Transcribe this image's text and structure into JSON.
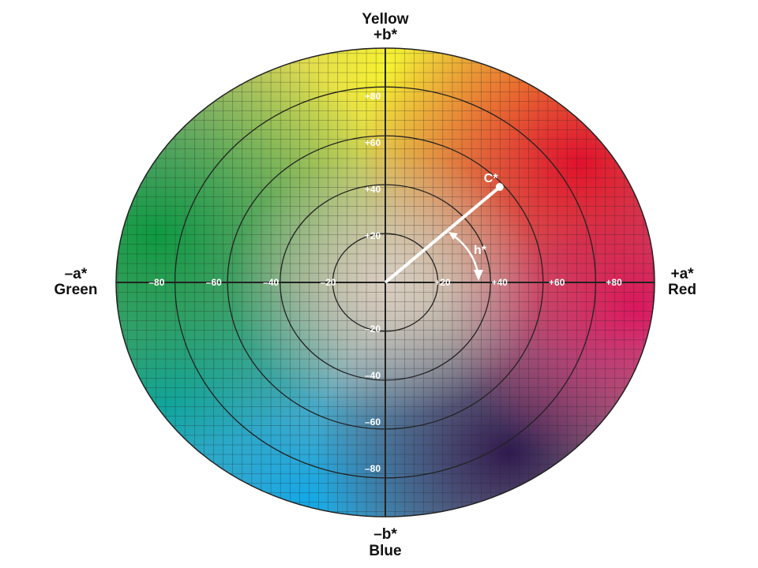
{
  "diagram": {
    "axes": {
      "top": {
        "line1": "Yellow",
        "line2": "+b*"
      },
      "bottom": {
        "line1": "–b*",
        "line2": "Blue"
      },
      "left": {
        "line1": "–a*",
        "line2": "Green"
      },
      "right": {
        "line1": "+a*",
        "line2": "Red"
      }
    },
    "a_ticks": [
      {
        "value": -80,
        "label": "–80"
      },
      {
        "value": -60,
        "label": "–60"
      },
      {
        "value": -40,
        "label": "–40"
      },
      {
        "value": -20,
        "label": "–20"
      },
      {
        "value": 20,
        "label": "+20"
      },
      {
        "value": 40,
        "label": "+40"
      },
      {
        "value": 60,
        "label": "+60"
      },
      {
        "value": 80,
        "label": "+80"
      }
    ],
    "b_ticks": [
      {
        "value": 80,
        "label": "+80"
      },
      {
        "value": 60,
        "label": "+60"
      },
      {
        "value": 40,
        "label": "+40"
      },
      {
        "value": 20,
        "label": "+20"
      },
      {
        "value": -20,
        "label": "–20"
      },
      {
        "value": -40,
        "label": "–40"
      },
      {
        "value": -60,
        "label": "–60"
      },
      {
        "value": -80,
        "label": "–80"
      }
    ],
    "chroma_rings": [
      20,
      40,
      60,
      80
    ],
    "chroma_point": {
      "label": "C*",
      "a": 40,
      "b": 41
    },
    "hue_label": "h*",
    "colors": {
      "green": "#16a04a",
      "yellow": "#f2ee3a",
      "red": "#e0143c",
      "magenta": "#d81a6c",
      "purple": "#3a1a5a",
      "blue": "#1aa6e0",
      "neutral": "#d8ccc0"
    }
  }
}
